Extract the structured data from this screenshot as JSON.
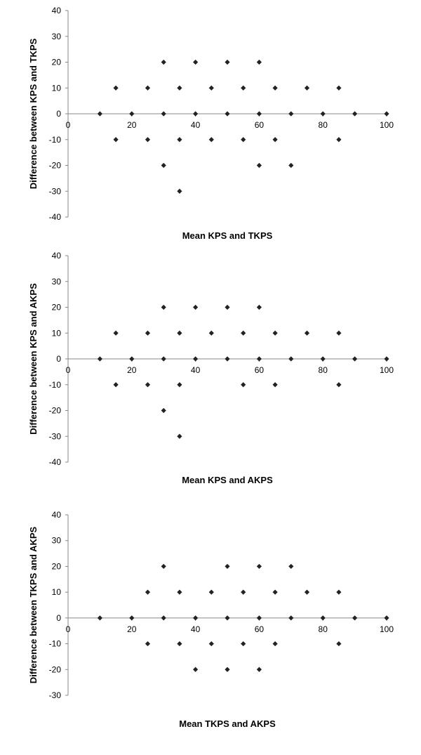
{
  "chart_data": [
    {
      "type": "scatter",
      "xlabel": "Mean KPS and TKPS",
      "ylabel": "Difference between KPS and TKPS",
      "xlim": [
        0,
        100
      ],
      "ylim": [
        -40,
        40
      ],
      "xticks": [
        0,
        20,
        40,
        60,
        80,
        100
      ],
      "yticks": [
        40,
        30,
        20,
        10,
        0,
        -10,
        -20,
        -30,
        -40
      ],
      "grid": false,
      "points": [
        [
          10,
          0
        ],
        [
          15,
          10
        ],
        [
          15,
          -10
        ],
        [
          20,
          0
        ],
        [
          25,
          10
        ],
        [
          25,
          -10
        ],
        [
          30,
          20
        ],
        [
          30,
          0
        ],
        [
          30,
          -20
        ],
        [
          35,
          10
        ],
        [
          35,
          -10
        ],
        [
          35,
          -30
        ],
        [
          40,
          20
        ],
        [
          40,
          0
        ],
        [
          45,
          10
        ],
        [
          45,
          -10
        ],
        [
          50,
          20
        ],
        [
          50,
          0
        ],
        [
          55,
          10
        ],
        [
          55,
          -10
        ],
        [
          60,
          20
        ],
        [
          60,
          0
        ],
        [
          60,
          -20
        ],
        [
          65,
          10
        ],
        [
          65,
          -10
        ],
        [
          70,
          0
        ],
        [
          70,
          -20
        ],
        [
          75,
          10
        ],
        [
          80,
          0
        ],
        [
          85,
          10
        ],
        [
          85,
          -10
        ],
        [
          90,
          0
        ],
        [
          100,
          0
        ]
      ]
    },
    {
      "type": "scatter",
      "xlabel": "Mean KPS and AKPS",
      "ylabel": "Difference between KPS and AKPS",
      "xlim": [
        0,
        100
      ],
      "ylim": [
        -40,
        40
      ],
      "xticks": [
        0,
        20,
        40,
        60,
        80,
        100
      ],
      "yticks": [
        40,
        30,
        20,
        10,
        0,
        -10,
        -20,
        -30,
        -40
      ],
      "grid": false,
      "points": [
        [
          10,
          0
        ],
        [
          15,
          10
        ],
        [
          15,
          -10
        ],
        [
          20,
          0
        ],
        [
          25,
          10
        ],
        [
          25,
          -10
        ],
        [
          30,
          20
        ],
        [
          30,
          0
        ],
        [
          30,
          -20
        ],
        [
          35,
          10
        ],
        [
          35,
          -10
        ],
        [
          35,
          -30
        ],
        [
          40,
          20
        ],
        [
          40,
          0
        ],
        [
          45,
          10
        ],
        [
          50,
          20
        ],
        [
          50,
          0
        ],
        [
          55,
          10
        ],
        [
          55,
          -10
        ],
        [
          60,
          20
        ],
        [
          60,
          0
        ],
        [
          65,
          10
        ],
        [
          65,
          -10
        ],
        [
          70,
          0
        ],
        [
          75,
          10
        ],
        [
          80,
          0
        ],
        [
          85,
          10
        ],
        [
          85,
          -10
        ],
        [
          90,
          0
        ],
        [
          100,
          0
        ]
      ]
    },
    {
      "type": "scatter",
      "xlabel": "Mean TKPS and AKPS",
      "ylabel": "Difference between TKPS and AKPS",
      "xlim": [
        0,
        100
      ],
      "ylim": [
        -30,
        40
      ],
      "xticks": [
        0,
        20,
        40,
        60,
        80,
        100
      ],
      "yticks": [
        40,
        30,
        20,
        10,
        0,
        -10,
        -20,
        -30
      ],
      "grid": false,
      "points": [
        [
          10,
          0
        ],
        [
          20,
          0
        ],
        [
          25,
          10
        ],
        [
          25,
          -10
        ],
        [
          30,
          20
        ],
        [
          30,
          0
        ],
        [
          35,
          10
        ],
        [
          35,
          -10
        ],
        [
          40,
          0
        ],
        [
          40,
          -20
        ],
        [
          45,
          10
        ],
        [
          45,
          -10
        ],
        [
          50,
          20
        ],
        [
          50,
          0
        ],
        [
          50,
          -20
        ],
        [
          55,
          10
        ],
        [
          55,
          -10
        ],
        [
          60,
          20
        ],
        [
          60,
          0
        ],
        [
          60,
          -20
        ],
        [
          65,
          10
        ],
        [
          65,
          -10
        ],
        [
          70,
          20
        ],
        [
          70,
          0
        ],
        [
          75,
          10
        ],
        [
          80,
          0
        ],
        [
          85,
          10
        ],
        [
          85,
          -10
        ],
        [
          90,
          0
        ],
        [
          100,
          0
        ]
      ]
    }
  ]
}
